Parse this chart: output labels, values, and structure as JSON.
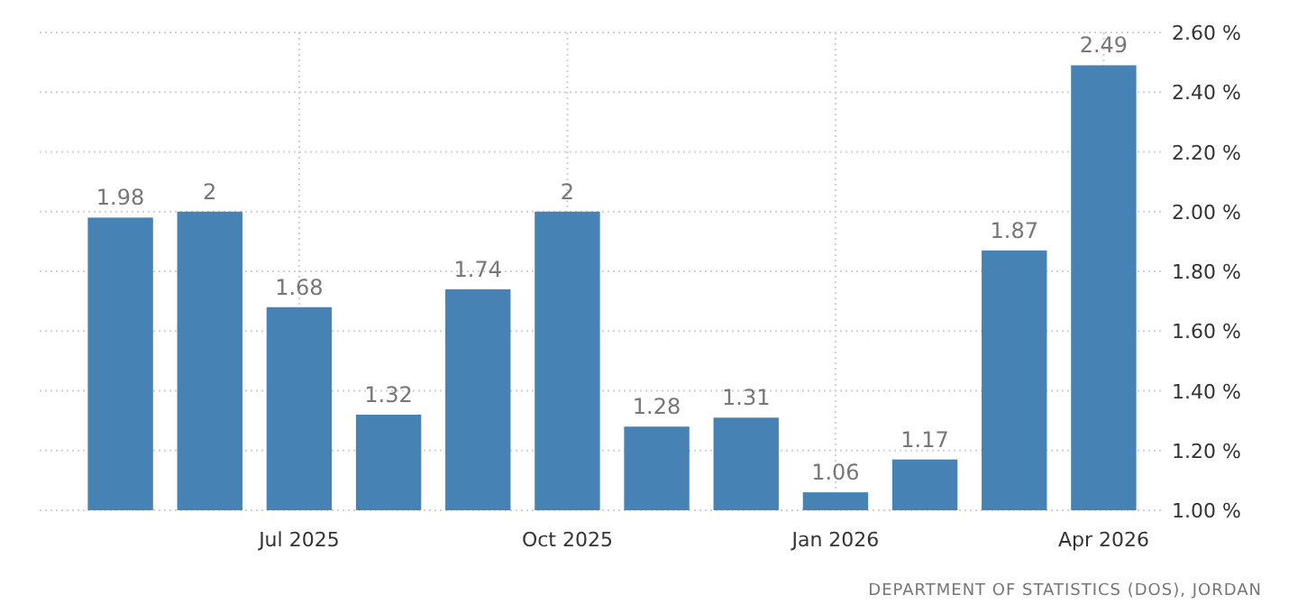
{
  "chart_data": {
    "type": "bar",
    "categories": [
      null,
      null,
      "Jul 2025",
      null,
      null,
      "Oct 2025",
      null,
      null,
      "Jan 2026",
      null,
      null,
      "Apr 2026"
    ],
    "values": [
      1.98,
      2,
      1.68,
      1.32,
      1.74,
      2,
      1.28,
      1.31,
      1.06,
      1.17,
      1.87,
      2.49
    ],
    "color": "#4682b4",
    "data_labels": true,
    "ylim": [
      1,
      2.6
    ],
    "yticks": [
      {
        "value": 1,
        "label": "1.00 %"
      },
      {
        "value": 1.2,
        "label": "1.20 %"
      },
      {
        "value": 1.4,
        "label": "1.40 %"
      },
      {
        "value": 1.6,
        "label": "1.60 %"
      },
      {
        "value": 1.8,
        "label": "1.80 %"
      },
      {
        "value": 2,
        "label": "2.00 %"
      },
      {
        "value": 2.2,
        "label": "2.20 %"
      },
      {
        "value": 2.4,
        "label": "2.40 %"
      },
      {
        "value": 2.6,
        "label": "2.60 %"
      }
    ],
    "grid": true,
    "annotations": [
      "DEPARTMENT OF STATISTICS (DOS), JORDAN"
    ]
  }
}
